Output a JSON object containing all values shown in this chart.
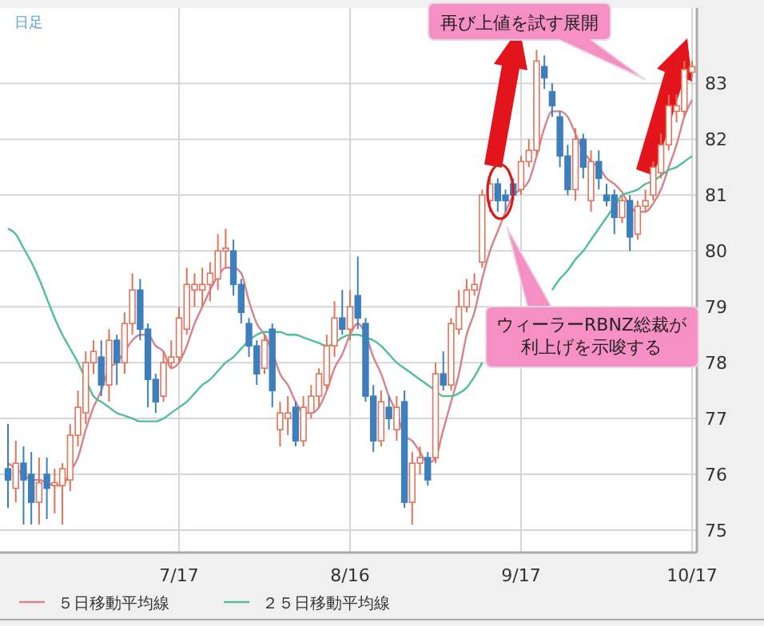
{
  "chart_data": {
    "type": "candlestick",
    "title": "日足",
    "categories": [
      null,
      null,
      null,
      null,
      null,
      null,
      null,
      null,
      null,
      null,
      null,
      null,
      null,
      null,
      null,
      null,
      null,
      null,
      null,
      null,
      null,
      null,
      "7/17",
      null,
      null,
      null,
      null,
      null,
      null,
      null,
      null,
      null,
      null,
      null,
      null,
      null,
      null,
      null,
      null,
      null,
      null,
      null,
      null,
      null,
      "8/16",
      null,
      null,
      null,
      null,
      null,
      null,
      null,
      null,
      null,
      null,
      null,
      null,
      null,
      null,
      null,
      null,
      null,
      null,
      null,
      null,
      null,
      "9/17",
      null,
      null,
      null,
      null,
      null,
      null,
      null,
      null,
      null,
      null,
      null,
      null,
      null,
      null,
      null,
      null,
      null,
      null,
      null,
      null,
      null,
      "10/17"
    ],
    "ohlc": [
      [
        76.1,
        76.9,
        75.4,
        75.9
      ],
      [
        75.75,
        76.6,
        75.5,
        76.2
      ],
      [
        76.2,
        76.5,
        75.1,
        75.9
      ],
      [
        76.0,
        76.4,
        75.1,
        75.5
      ],
      [
        75.5,
        76.3,
        75.1,
        75.85
      ],
      [
        76.0,
        76.3,
        75.2,
        75.75
      ],
      [
        75.8,
        76.1,
        75.3,
        75.85
      ],
      [
        75.8,
        76.2,
        75.1,
        76.1
      ],
      [
        75.9,
        76.9,
        75.7,
        76.7
      ],
      [
        76.7,
        77.5,
        76.5,
        77.2
      ],
      [
        77.1,
        78.2,
        76.9,
        78.0
      ],
      [
        78.0,
        78.4,
        77.8,
        78.2
      ],
      [
        78.1,
        78.4,
        77.4,
        77.6
      ],
      [
        77.6,
        78.6,
        77.3,
        78.4
      ],
      [
        78.4,
        78.5,
        77.6,
        78.0
      ],
      [
        78.0,
        78.9,
        77.8,
        78.7
      ],
      [
        78.7,
        79.6,
        78.5,
        79.3
      ],
      [
        79.3,
        79.5,
        78.4,
        78.6
      ],
      [
        78.6,
        78.7,
        77.2,
        77.7
      ],
      [
        77.7,
        77.8,
        77.1,
        77.3
      ],
      [
        77.4,
        78.2,
        77.3,
        78.0
      ],
      [
        78.0,
        78.4,
        77.9,
        78.1
      ],
      [
        78.1,
        79.0,
        78.0,
        78.8
      ],
      [
        78.6,
        79.7,
        78.5,
        79.4
      ],
      [
        79.3,
        79.6,
        79.0,
        79.4
      ],
      [
        79.3,
        79.7,
        79.0,
        79.4
      ],
      [
        79.4,
        79.8,
        79.1,
        79.6
      ],
      [
        79.5,
        80.3,
        79.3,
        80.0
      ],
      [
        80.0,
        80.4,
        79.7,
        80.05
      ],
      [
        80.0,
        80.2,
        79.2,
        79.4
      ],
      [
        79.4,
        79.5,
        78.7,
        78.9
      ],
      [
        78.7,
        78.8,
        78.1,
        78.3
      ],
      [
        78.3,
        78.4,
        77.6,
        77.8
      ],
      [
        77.9,
        78.5,
        77.8,
        78.4
      ],
      [
        78.6,
        78.7,
        77.2,
        77.5
      ],
      [
        76.8,
        77.3,
        76.5,
        77.1
      ],
      [
        77.0,
        77.4,
        76.7,
        77.1
      ],
      [
        77.2,
        77.3,
        76.5,
        76.6
      ],
      [
        76.6,
        77.4,
        76.5,
        77.2
      ],
      [
        77.1,
        77.6,
        77.0,
        77.4
      ],
      [
        77.4,
        77.9,
        77.2,
        77.8
      ],
      [
        77.6,
        78.5,
        77.5,
        78.3
      ],
      [
        78.3,
        79.1,
        78.1,
        78.8
      ],
      [
        78.8,
        79.3,
        78.5,
        78.6
      ],
      [
        78.6,
        79.3,
        78.4,
        79.0
      ],
      [
        79.2,
        79.9,
        78.6,
        78.8
      ],
      [
        78.7,
        78.8,
        77.3,
        77.4
      ],
      [
        77.4,
        77.6,
        76.4,
        76.6
      ],
      [
        76.6,
        77.5,
        76.5,
        77.3
      ],
      [
        77.2,
        77.4,
        76.8,
        77.0
      ],
      [
        76.8,
        77.4,
        76.6,
        77.2
      ],
      [
        77.3,
        77.5,
        75.4,
        75.5
      ],
      [
        75.5,
        76.4,
        75.1,
        76.2
      ],
      [
        76.2,
        76.5,
        76.0,
        76.3
      ],
      [
        76.3,
        76.4,
        75.8,
        75.9
      ],
      [
        76.3,
        78.0,
        76.2,
        77.8
      ],
      [
        77.8,
        78.2,
        77.5,
        77.6
      ],
      [
        77.6,
        78.8,
        77.5,
        78.7
      ],
      [
        78.6,
        79.3,
        78.5,
        79.0
      ],
      [
        79.0,
        79.5,
        78.9,
        79.3
      ],
      [
        79.3,
        79.6,
        79.2,
        79.4
      ],
      [
        79.8,
        81.1,
        79.7,
        81.0
      ],
      [
        80.9,
        81.4,
        80.7,
        81.2
      ],
      [
        81.2,
        81.3,
        80.7,
        80.9
      ],
      [
        81.0,
        81.1,
        80.7,
        80.9
      ],
      [
        81.2,
        81.3,
        80.9,
        81.0
      ],
      [
        81.1,
        81.7,
        81.0,
        81.6
      ],
      [
        81.6,
        82.0,
        81.5,
        81.8
      ],
      [
        81.8,
        83.6,
        81.7,
        83.4
      ],
      [
        83.3,
        83.5,
        82.9,
        83.1
      ],
      [
        82.85,
        83.0,
        82.4,
        82.6
      ],
      [
        82.4,
        82.5,
        81.5,
        81.7
      ],
      [
        81.7,
        81.9,
        81.0,
        81.1
      ],
      [
        81.1,
        82.2,
        80.9,
        82.0
      ],
      [
        82.0,
        82.1,
        81.3,
        81.5
      ],
      [
        80.9,
        81.8,
        80.7,
        81.6
      ],
      [
        81.6,
        81.8,
        81.1,
        81.3
      ],
      [
        81.0,
        81.2,
        80.8,
        80.9
      ],
      [
        81.0,
        81.1,
        80.3,
        80.6
      ],
      [
        80.6,
        81.0,
        80.5,
        80.9
      ],
      [
        80.9,
        81.0,
        80.0,
        80.25
      ],
      [
        80.3,
        80.9,
        80.2,
        80.8
      ],
      [
        80.8,
        81.1,
        80.7,
        80.9
      ],
      [
        81.0,
        81.6,
        80.9,
        81.5
      ],
      [
        81.4,
        82.1,
        81.3,
        81.9
      ],
      [
        81.9,
        82.8,
        81.8,
        82.6
      ],
      [
        82.5,
        82.8,
        82.3,
        82.6
      ],
      [
        82.5,
        83.4,
        82.4,
        83.25
      ],
      [
        83.2,
        83.4,
        83.1,
        83.3
      ]
    ],
    "series": [
      {
        "type": "line",
        "name": "５日移動平均線",
        "color": "#d9808a",
        "values": [
          76.2,
          76.1,
          76.0,
          75.9,
          75.9,
          75.85,
          75.8,
          75.8,
          76.05,
          76.3,
          76.8,
          77.2,
          77.5,
          77.9,
          78.0,
          78.2,
          78.4,
          78.5,
          78.5,
          78.3,
          78.2,
          77.9,
          78.0,
          78.3,
          78.7,
          79.0,
          79.3,
          79.55,
          79.7,
          79.7,
          79.6,
          79.1,
          78.7,
          78.5,
          78.2,
          77.8,
          77.6,
          77.3,
          77.1,
          77.1,
          77.2,
          77.5,
          77.9,
          78.15,
          78.5,
          78.7,
          78.5,
          78.1,
          77.8,
          77.4,
          77.1,
          76.7,
          76.6,
          76.4,
          76.2,
          76.3,
          76.8,
          77.3,
          77.8,
          78.5,
          78.9,
          79.5,
          80.0,
          80.35,
          80.7,
          81.0,
          81.1,
          81.25,
          81.7,
          82.2,
          82.5,
          82.5,
          82.4,
          82.1,
          81.8,
          81.6,
          81.5,
          81.3,
          81.2,
          81.05,
          80.8,
          80.7,
          80.7,
          80.85,
          81.1,
          81.5,
          81.9,
          82.4,
          82.7
        ]
      },
      {
        "type": "line",
        "name": "２５日移動平均線",
        "color": "#4fbf96",
        "values": [
          80.4,
          80.3,
          80.05,
          79.8,
          79.5,
          79.15,
          78.8,
          78.5,
          78.25,
          78.0,
          77.7,
          77.4,
          77.3,
          77.2,
          77.1,
          77.05,
          77.0,
          76.95,
          76.95,
          76.95,
          77.0,
          77.1,
          77.2,
          77.3,
          77.45,
          77.6,
          77.7,
          77.85,
          78.0,
          78.1,
          78.25,
          78.4,
          78.5,
          78.55,
          78.55,
          78.55,
          78.5,
          78.5,
          78.45,
          78.4,
          78.35,
          78.3,
          78.35,
          78.45,
          78.5,
          78.5,
          78.45,
          78.4,
          78.3,
          78.15,
          78.0,
          77.9,
          77.8,
          77.7,
          77.6,
          77.5,
          77.4,
          77.4,
          77.45,
          77.55,
          77.75,
          78.0,
          null,
          null,
          null,
          null,
          null,
          null,
          null,
          null,
          79.3,
          79.5,
          79.65,
          79.85,
          80.0,
          80.2,
          80.4,
          80.6,
          80.8,
          81.0,
          81.05,
          81.1,
          81.2,
          81.25,
          81.35,
          81.45,
          81.5,
          81.6,
          81.7
        ]
      }
    ],
    "ylim": [
      74.6,
      84.35
    ],
    "yticks": [
      75,
      76,
      77,
      78,
      79,
      80,
      81,
      82,
      83
    ],
    "grid": true,
    "legend": "bottom",
    "annotations": [
      "再び上値を試す展開",
      "ウィーラーRBNZ総裁が利上げを示唆する"
    ]
  }
}
